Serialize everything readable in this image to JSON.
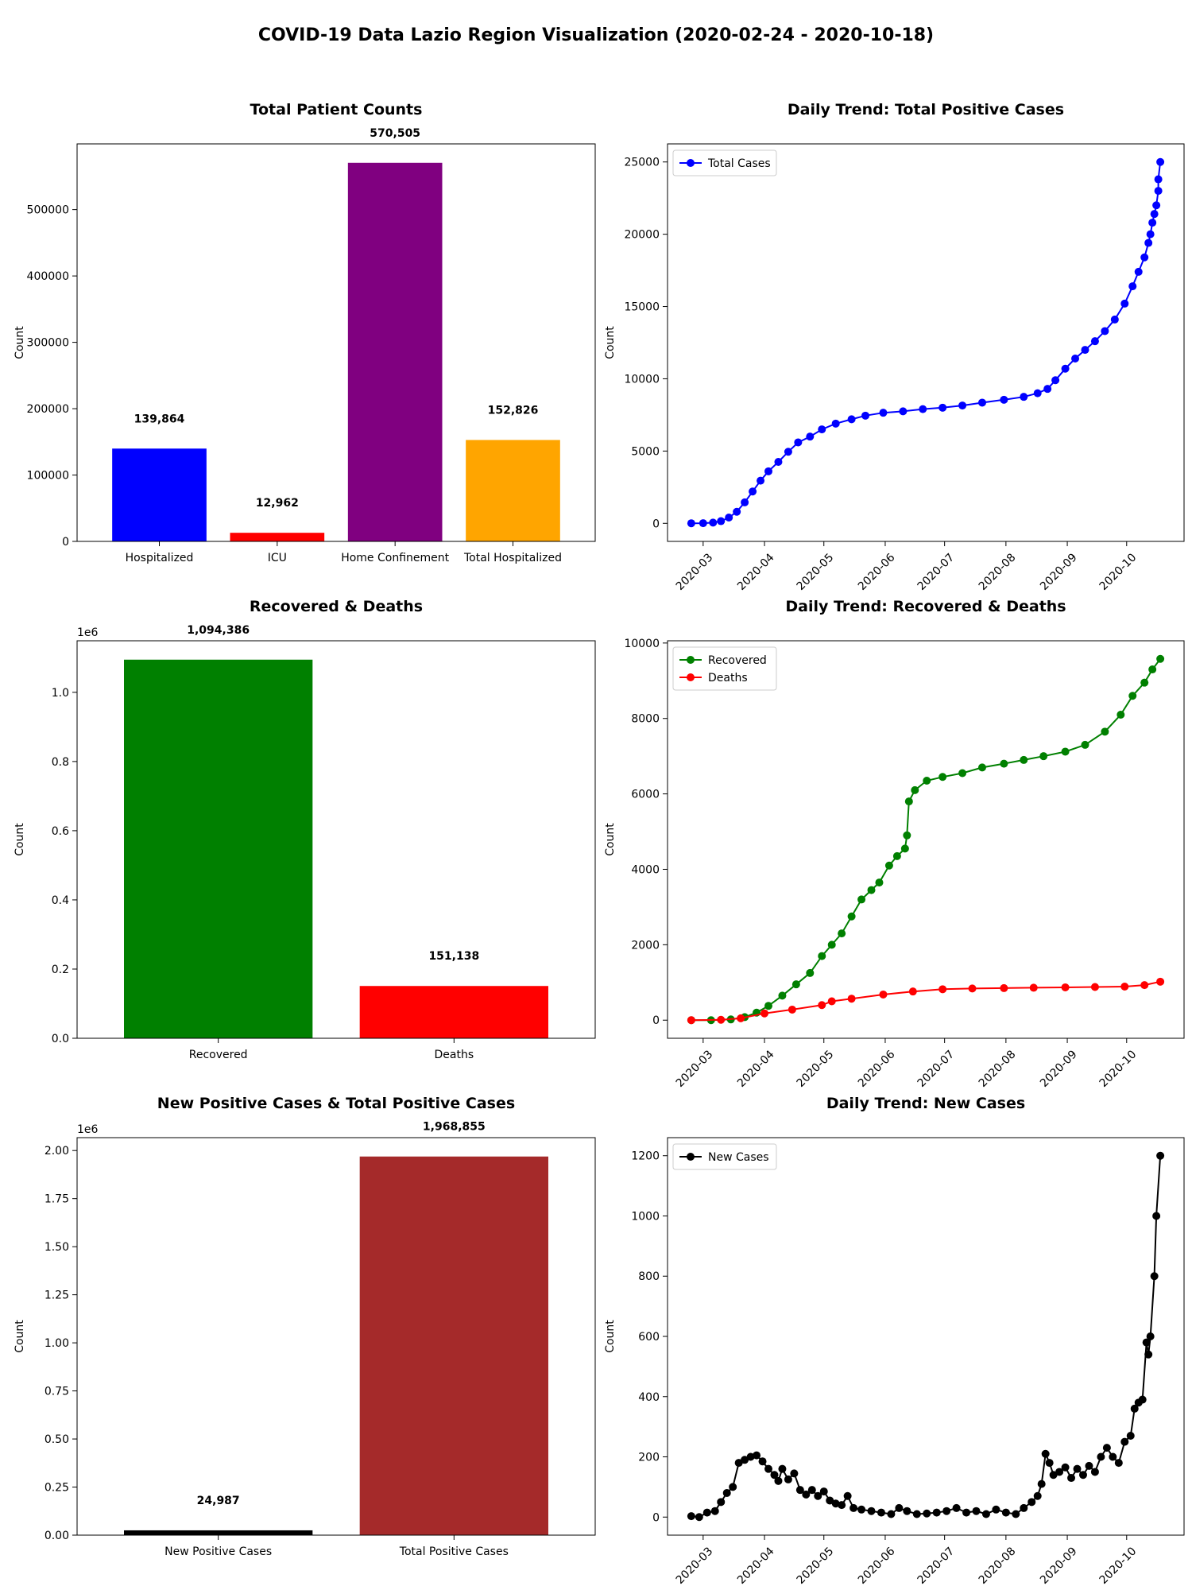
{
  "figure": {
    "title": "COVID-19 Data Lazio Region Visualization (2020-02-24 - 2020-10-18)"
  },
  "chart_data": [
    {
      "type": "bar",
      "title": "Total Patient Counts",
      "ylabel": "Count",
      "xlabel": "",
      "categories": [
        "Hospitalized",
        "ICU",
        "Home Confinement",
        "Total Hospitalized"
      ],
      "values": [
        139864,
        12962,
        570505,
        152826
      ],
      "data_labels": [
        "139,864",
        "12,962",
        "570,505",
        "152,826"
      ],
      "colors": [
        "#0000ff",
        "#ff0000",
        "#800080",
        "#ffa500"
      ],
      "ylim": [
        0,
        599000
      ],
      "yticks": [
        0,
        100000,
        200000,
        300000,
        400000,
        500000
      ],
      "ytick_labels": [
        "0",
        "100000",
        "200000",
        "300000",
        "400000",
        "500000"
      ],
      "offset_label": "",
      "grid": false
    },
    {
      "type": "line",
      "title": "Daily Trend: Total Positive Cases",
      "ylabel": "Count",
      "xlabel": "",
      "legend": {
        "position": "upper-left"
      },
      "ylim": [
        -1250,
        26250
      ],
      "yticks": [
        0,
        5000,
        10000,
        15000,
        20000,
        25000
      ],
      "ytick_labels": [
        "0",
        "5000",
        "10000",
        "15000",
        "20000",
        "25000"
      ],
      "xlim": [
        "2020-02-12",
        "2020-10-30"
      ],
      "xticks": [
        "2020-03-01",
        "2020-04-01",
        "2020-05-01",
        "2020-06-01",
        "2020-07-01",
        "2020-08-01",
        "2020-09-01",
        "2020-10-01"
      ],
      "xtick_labels": [
        "2020-03",
        "2020-04",
        "2020-05",
        "2020-06",
        "2020-07",
        "2020-08",
        "2020-09",
        "2020-10"
      ],
      "grid": false,
      "series": [
        {
          "name": "Total Cases",
          "color": "#0000ff",
          "marker": "circle",
          "points": [
            [
              "2020-02-24",
              3
            ],
            [
              "2020-03-01",
              10
            ],
            [
              "2020-03-06",
              50
            ],
            [
              "2020-03-10",
              150
            ],
            [
              "2020-03-14",
              400
            ],
            [
              "2020-03-18",
              800
            ],
            [
              "2020-03-22",
              1450
            ],
            [
              "2020-03-26",
              2200
            ],
            [
              "2020-03-30",
              2950
            ],
            [
              "2020-04-03",
              3600
            ],
            [
              "2020-04-08",
              4250
            ],
            [
              "2020-04-13",
              4950
            ],
            [
              "2020-04-18",
              5600
            ],
            [
              "2020-04-24",
              6000
            ],
            [
              "2020-04-30",
              6500
            ],
            [
              "2020-05-07",
              6900
            ],
            [
              "2020-05-15",
              7200
            ],
            [
              "2020-05-22",
              7450
            ],
            [
              "2020-05-31",
              7650
            ],
            [
              "2020-06-10",
              7750
            ],
            [
              "2020-06-20",
              7900
            ],
            [
              "2020-06-30",
              8000
            ],
            [
              "2020-07-10",
              8150
            ],
            [
              "2020-07-20",
              8350
            ],
            [
              "2020-07-31",
              8550
            ],
            [
              "2020-08-10",
              8750
            ],
            [
              "2020-08-17",
              9000
            ],
            [
              "2020-08-22",
              9300
            ],
            [
              "2020-08-26",
              9900
            ],
            [
              "2020-08-31",
              10700
            ],
            [
              "2020-09-05",
              11400
            ],
            [
              "2020-09-10",
              12000
            ],
            [
              "2020-09-15",
              12600
            ],
            [
              "2020-09-20",
              13300
            ],
            [
              "2020-09-25",
              14100
            ],
            [
              "2020-09-30",
              15200
            ],
            [
              "2020-10-04",
              16400
            ],
            [
              "2020-10-07",
              17400
            ],
            [
              "2020-10-10",
              18400
            ],
            [
              "2020-10-12",
              19400
            ],
            [
              "2020-10-13",
              20000
            ],
            [
              "2020-10-14",
              20800
            ],
            [
              "2020-10-15",
              21400
            ],
            [
              "2020-10-16",
              22000
            ],
            [
              "2020-10-17",
              23000
            ],
            [
              "2020-10-17",
              23800
            ],
            [
              "2020-10-18",
              25000
            ]
          ]
        }
      ]
    },
    {
      "type": "bar",
      "title": "Recovered & Deaths",
      "ylabel": "Count",
      "xlabel": "",
      "categories": [
        "Recovered",
        "Deaths"
      ],
      "values": [
        1094386,
        151138
      ],
      "data_labels": [
        "1,094,386",
        "151,138"
      ],
      "colors": [
        "#008000",
        "#ff0000"
      ],
      "ylim": [
        0,
        1149000
      ],
      "yticks": [
        0,
        200000,
        400000,
        600000,
        800000,
        1000000
      ],
      "ytick_labels": [
        "0.0",
        "0.2",
        "0.4",
        "0.6",
        "0.8",
        "1.0"
      ],
      "offset_label": "1e6",
      "grid": false
    },
    {
      "type": "line",
      "title": "Daily Trend: Recovered & Deaths",
      "ylabel": "Count",
      "xlabel": "",
      "legend": {
        "position": "upper-left"
      },
      "ylim": [
        -480,
        10060
      ],
      "yticks": [
        0,
        2000,
        4000,
        6000,
        8000,
        10000
      ],
      "ytick_labels": [
        "0",
        "2000",
        "4000",
        "6000",
        "8000",
        "10000"
      ],
      "xlim": [
        "2020-02-12",
        "2020-10-30"
      ],
      "xticks": [
        "2020-03-01",
        "2020-04-01",
        "2020-05-01",
        "2020-06-01",
        "2020-07-01",
        "2020-08-01",
        "2020-09-01",
        "2020-10-01"
      ],
      "xtick_labels": [
        "2020-03",
        "2020-04",
        "2020-05",
        "2020-06",
        "2020-07",
        "2020-08",
        "2020-09",
        "2020-10"
      ],
      "grid": false,
      "series": [
        {
          "name": "Recovered",
          "color": "#008000",
          "marker": "circle",
          "points": [
            [
              "2020-02-24",
              0
            ],
            [
              "2020-03-05",
              0
            ],
            [
              "2020-03-15",
              20
            ],
            [
              "2020-03-22",
              80
            ],
            [
              "2020-03-28",
              200
            ],
            [
              "2020-04-03",
              380
            ],
            [
              "2020-04-10",
              650
            ],
            [
              "2020-04-17",
              950
            ],
            [
              "2020-04-24",
              1250
            ],
            [
              "2020-04-30",
              1700
            ],
            [
              "2020-05-05",
              2000
            ],
            [
              "2020-05-10",
              2300
            ],
            [
              "2020-05-15",
              2750
            ],
            [
              "2020-05-20",
              3200
            ],
            [
              "2020-05-25",
              3450
            ],
            [
              "2020-05-29",
              3650
            ],
            [
              "2020-06-03",
              4100
            ],
            [
              "2020-06-07",
              4350
            ],
            [
              "2020-06-11",
              4550
            ],
            [
              "2020-06-12",
              4900
            ],
            [
              "2020-06-13",
              5800
            ],
            [
              "2020-06-16",
              6100
            ],
            [
              "2020-06-22",
              6350
            ],
            [
              "2020-06-30",
              6450
            ],
            [
              "2020-07-10",
              6550
            ],
            [
              "2020-07-20",
              6700
            ],
            [
              "2020-07-31",
              6800
            ],
            [
              "2020-08-10",
              6900
            ],
            [
              "2020-08-20",
              7000
            ],
            [
              "2020-08-31",
              7120
            ],
            [
              "2020-09-10",
              7300
            ],
            [
              "2020-09-20",
              7650
            ],
            [
              "2020-09-28",
              8100
            ],
            [
              "2020-10-04",
              8600
            ],
            [
              "2020-10-10",
              8950
            ],
            [
              "2020-10-14",
              9300
            ],
            [
              "2020-10-18",
              9580
            ]
          ]
        },
        {
          "name": "Deaths",
          "color": "#ff0000",
          "marker": "circle",
          "points": [
            [
              "2020-02-24",
              0
            ],
            [
              "2020-03-10",
              10
            ],
            [
              "2020-03-20",
              50
            ],
            [
              "2020-04-01",
              180
            ],
            [
              "2020-04-15",
              280
            ],
            [
              "2020-04-30",
              400
            ],
            [
              "2020-05-05",
              500
            ],
            [
              "2020-05-15",
              570
            ],
            [
              "2020-05-31",
              680
            ],
            [
              "2020-06-15",
              760
            ],
            [
              "2020-06-30",
              820
            ],
            [
              "2020-07-15",
              840
            ],
            [
              "2020-07-31",
              850
            ],
            [
              "2020-08-15",
              860
            ],
            [
              "2020-08-31",
              870
            ],
            [
              "2020-09-15",
              880
            ],
            [
              "2020-09-30",
              890
            ],
            [
              "2020-10-10",
              930
            ],
            [
              "2020-10-18",
              1020
            ]
          ]
        }
      ]
    },
    {
      "type": "bar",
      "title": "New Positive Cases & Total Positive Cases",
      "ylabel": "Count",
      "xlabel": "",
      "categories": [
        "New Positive Cases",
        "Total Positive Cases"
      ],
      "values": [
        24987,
        1968855
      ],
      "data_labels": [
        "24,987",
        "1,968,855"
      ],
      "colors": [
        "#000000",
        "#a52a2a"
      ],
      "ylim": [
        0,
        2067000
      ],
      "yticks": [
        0,
        250000,
        500000,
        750000,
        1000000,
        1250000,
        1500000,
        1750000,
        2000000
      ],
      "ytick_labels": [
        "0.00",
        "0.25",
        "0.50",
        "0.75",
        "1.00",
        "1.25",
        "1.50",
        "1.75",
        "2.00"
      ],
      "offset_label": "1e6",
      "grid": false
    },
    {
      "type": "line",
      "title": "Daily Trend: New Cases",
      "ylabel": "Count",
      "xlabel": "",
      "legend": {
        "position": "upper-left"
      },
      "ylim": [
        -60,
        1260
      ],
      "yticks": [
        0,
        200,
        400,
        600,
        800,
        1000,
        1200
      ],
      "ytick_labels": [
        "0",
        "200",
        "400",
        "600",
        "800",
        "1000",
        "1200"
      ],
      "xlim": [
        "2020-02-12",
        "2020-10-30"
      ],
      "xticks": [
        "2020-03-01",
        "2020-04-01",
        "2020-05-01",
        "2020-06-01",
        "2020-07-01",
        "2020-08-01",
        "2020-09-01",
        "2020-10-01"
      ],
      "xtick_labels": [
        "2020-03",
        "2020-04",
        "2020-05",
        "2020-06",
        "2020-07",
        "2020-08",
        "2020-09",
        "2020-10"
      ],
      "grid": false,
      "series": [
        {
          "name": "New Cases",
          "color": "#000000",
          "marker": "circle",
          "points": [
            [
              "2020-02-24",
              3
            ],
            [
              "2020-02-28",
              0
            ],
            [
              "2020-03-03",
              15
            ],
            [
              "2020-03-07",
              20
            ],
            [
              "2020-03-10",
              50
            ],
            [
              "2020-03-13",
              80
            ],
            [
              "2020-03-16",
              100
            ],
            [
              "2020-03-19",
              180
            ],
            [
              "2020-03-22",
              190
            ],
            [
              "2020-03-25",
              200
            ],
            [
              "2020-03-28",
              205
            ],
            [
              "2020-03-31",
              185
            ],
            [
              "2020-04-03",
              160
            ],
            [
              "2020-04-06",
              140
            ],
            [
              "2020-04-08",
              120
            ],
            [
              "2020-04-10",
              160
            ],
            [
              "2020-04-13",
              125
            ],
            [
              "2020-04-16",
              145
            ],
            [
              "2020-04-19",
              90
            ],
            [
              "2020-04-22",
              75
            ],
            [
              "2020-04-25",
              90
            ],
            [
              "2020-04-28",
              70
            ],
            [
              "2020-05-01",
              85
            ],
            [
              "2020-05-04",
              55
            ],
            [
              "2020-05-07",
              45
            ],
            [
              "2020-05-10",
              40
            ],
            [
              "2020-05-13",
              70
            ],
            [
              "2020-05-16",
              30
            ],
            [
              "2020-05-20",
              25
            ],
            [
              "2020-05-25",
              20
            ],
            [
              "2020-05-30",
              15
            ],
            [
              "2020-06-04",
              10
            ],
            [
              "2020-06-08",
              30
            ],
            [
              "2020-06-12",
              20
            ],
            [
              "2020-06-17",
              10
            ],
            [
              "2020-06-22",
              12
            ],
            [
              "2020-06-27",
              15
            ],
            [
              "2020-07-02",
              20
            ],
            [
              "2020-07-07",
              30
            ],
            [
              "2020-07-12",
              15
            ],
            [
              "2020-07-17",
              20
            ],
            [
              "2020-07-22",
              10
            ],
            [
              "2020-07-27",
              25
            ],
            [
              "2020-08-01",
              15
            ],
            [
              "2020-08-06",
              10
            ],
            [
              "2020-08-10",
              30
            ],
            [
              "2020-08-14",
              50
            ],
            [
              "2020-08-17",
              70
            ],
            [
              "2020-08-19",
              110
            ],
            [
              "2020-08-21",
              210
            ],
            [
              "2020-08-23",
              180
            ],
            [
              "2020-08-25",
              140
            ],
            [
              "2020-08-28",
              150
            ],
            [
              "2020-08-31",
              165
            ],
            [
              "2020-09-03",
              130
            ],
            [
              "2020-09-06",
              160
            ],
            [
              "2020-09-09",
              140
            ],
            [
              "2020-09-12",
              170
            ],
            [
              "2020-09-15",
              150
            ],
            [
              "2020-09-18",
              200
            ],
            [
              "2020-09-21",
              230
            ],
            [
              "2020-09-24",
              200
            ],
            [
              "2020-09-27",
              180
            ],
            [
              "2020-09-30",
              250
            ],
            [
              "2020-10-03",
              270
            ],
            [
              "2020-10-05",
              360
            ],
            [
              "2020-10-07",
              380
            ],
            [
              "2020-10-09",
              390
            ],
            [
              "2020-10-11",
              580
            ],
            [
              "2020-10-12",
              540
            ],
            [
              "2020-10-13",
              600
            ],
            [
              "2020-10-15",
              800
            ],
            [
              "2020-10-16",
              1000
            ],
            [
              "2020-10-18",
              1200
            ]
          ]
        }
      ]
    }
  ]
}
